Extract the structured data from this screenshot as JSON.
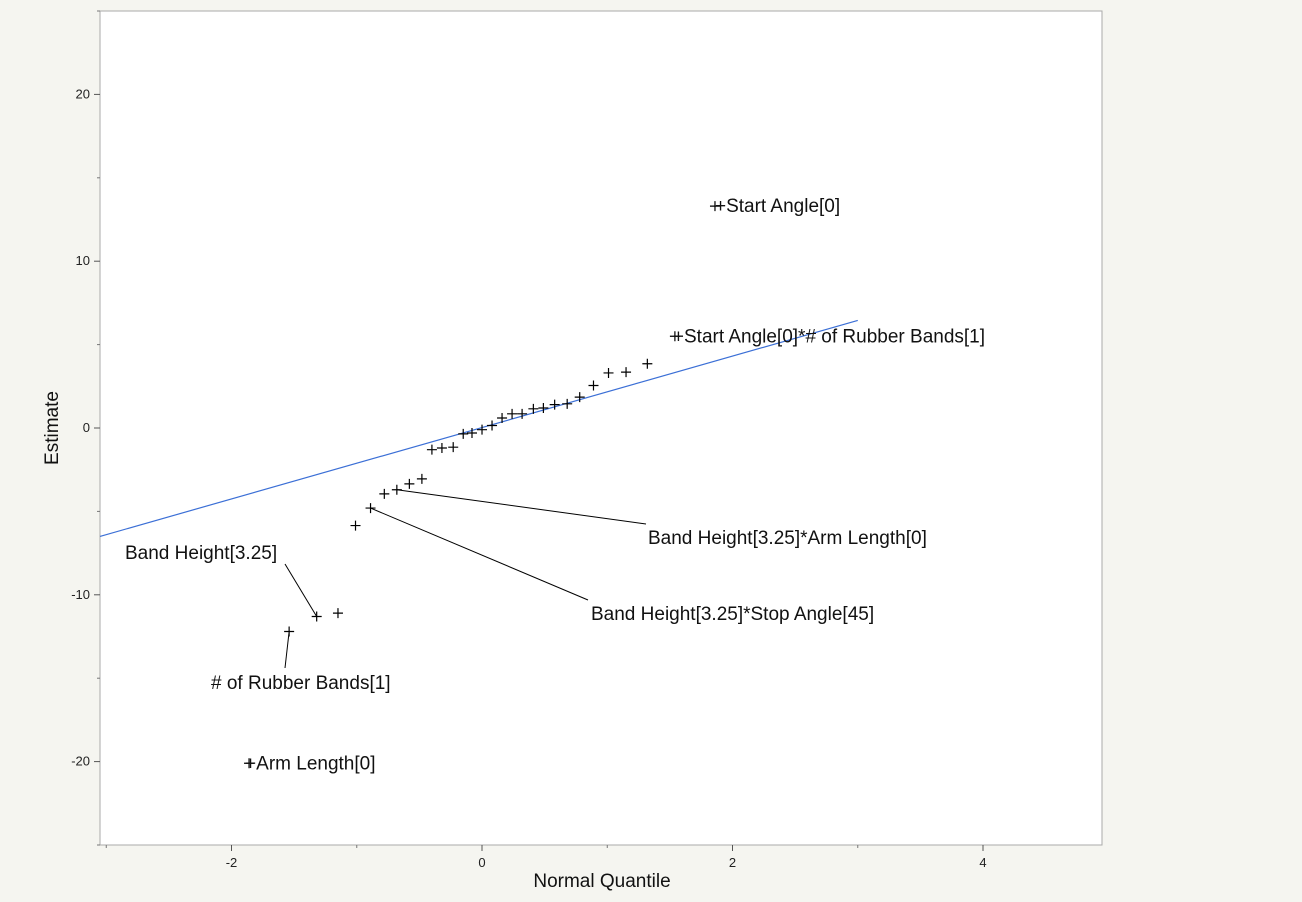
{
  "chart_data": {
    "type": "scatter",
    "title": "",
    "xlabel": "Normal Quantile",
    "ylabel": "Estimate",
    "xlim": [
      -3.05,
      4.95
    ],
    "ylim": [
      -25,
      25
    ],
    "x_ticks": [
      -2,
      0,
      2,
      4
    ],
    "y_ticks": [
      -20,
      -10,
      0,
      10,
      20
    ],
    "grid": false,
    "colors": {
      "points": "#000000",
      "line": "#3b6fd6",
      "frame": "#aaaaaa",
      "background": "#ffffff"
    },
    "marker": "plus",
    "points": [
      {
        "x": -1.54,
        "y": -12.2
      },
      {
        "x": -1.32,
        "y": -11.3
      },
      {
        "x": -1.15,
        "y": -11.1
      },
      {
        "x": -1.01,
        "y": -5.85
      },
      {
        "x": -0.89,
        "y": -4.8
      },
      {
        "x": -0.78,
        "y": -3.95
      },
      {
        "x": -0.68,
        "y": -3.7
      },
      {
        "x": -0.58,
        "y": -3.35
      },
      {
        "x": -0.48,
        "y": -3.05
      },
      {
        "x": -0.4,
        "y": -1.3
      },
      {
        "x": -0.32,
        "y": -1.2
      },
      {
        "x": -0.23,
        "y": -1.15
      },
      {
        "x": -0.15,
        "y": -0.35
      },
      {
        "x": -0.08,
        "y": -0.3
      },
      {
        "x": 0.0,
        "y": -0.1
      },
      {
        "x": 0.08,
        "y": 0.15
      },
      {
        "x": 0.16,
        "y": 0.6
      },
      {
        "x": 0.24,
        "y": 0.85
      },
      {
        "x": 0.32,
        "y": 0.85
      },
      {
        "x": 0.41,
        "y": 1.15
      },
      {
        "x": 0.49,
        "y": 1.2
      },
      {
        "x": 0.58,
        "y": 1.4
      },
      {
        "x": 0.68,
        "y": 1.45
      },
      {
        "x": 0.78,
        "y": 1.85
      },
      {
        "x": 0.89,
        "y": 2.55
      },
      {
        "x": 1.01,
        "y": 3.3
      },
      {
        "x": 1.15,
        "y": 3.35
      },
      {
        "x": 1.32,
        "y": 3.85
      },
      {
        "x": 1.54,
        "y": 5.5
      },
      {
        "x": 1.86,
        "y": 13.3
      },
      {
        "x": -1.86,
        "y": -20.1
      }
    ],
    "reference_line": {
      "x": [
        -3.05,
        3.0
      ],
      "y": [
        -6.5,
        6.45
      ]
    },
    "annotations": [
      {
        "text": "+Start Angle[0]",
        "point": 29,
        "leader": false
      },
      {
        "text": "+Start Angle[0]*# of Rubber Bands[1]",
        "point": 28,
        "leader": false
      },
      {
        "text": "Band Height[3.25]*Arm Length[0]",
        "point": 6,
        "leader": true
      },
      {
        "text": "Band Height[3.25]*Stop Angle[45]",
        "point": 4,
        "leader": true
      },
      {
        "text": "Band Height[3.25]",
        "point": 1,
        "leader": true
      },
      {
        "text": "# of Rubber Bands[1]",
        "point": 0,
        "leader": true
      },
      {
        "text": "+Arm Length[0]",
        "point": 30,
        "leader": false
      }
    ]
  }
}
